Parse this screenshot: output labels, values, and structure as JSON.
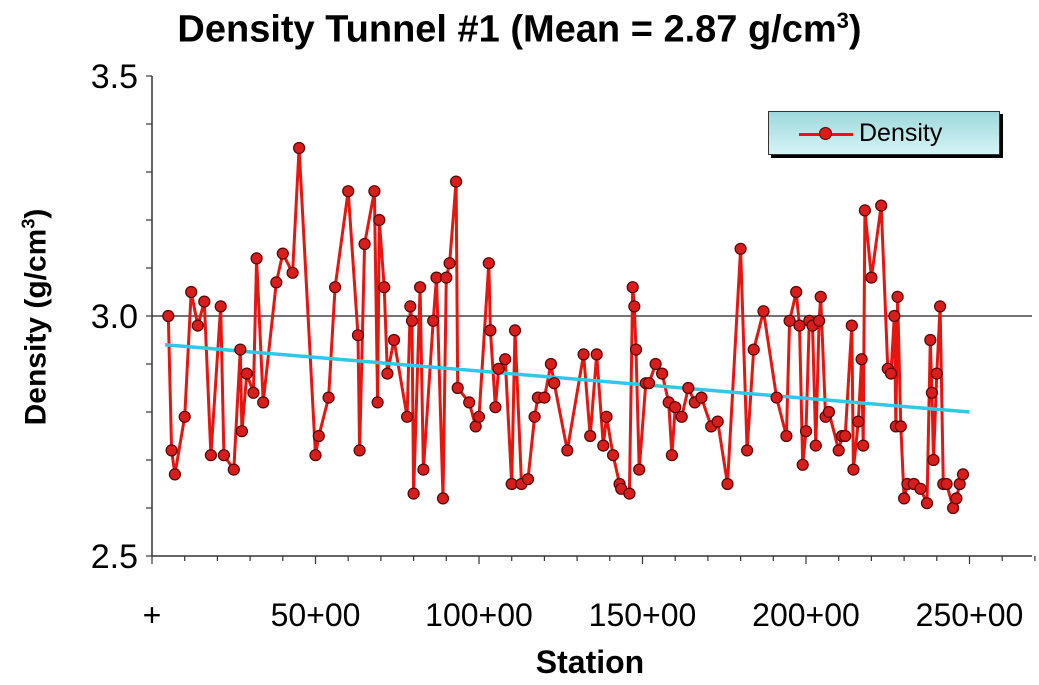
{
  "chart_data": {
    "type": "line",
    "title_main": "Density Tunnel #1  (Mean = 2.87 g/cm",
    "title_sup": "3",
    "title_end": ")",
    "ylabel_main": "Density (g/cm",
    "ylabel_sup": "3",
    "ylabel_end": ")",
    "xlabel": "Station",
    "ylim": [
      2.5,
      3.5
    ],
    "yticks": [
      "2.5",
      "3.0",
      "3.5"
    ],
    "xlim": [
      0,
      270
    ],
    "xticks": [
      {
        "v": 0,
        "label": "+"
      },
      {
        "v": 50,
        "label": "50+00"
      },
      {
        "v": 100,
        "label": "100+00"
      },
      {
        "v": 150,
        "label": "150+00"
      },
      {
        "v": 200,
        "label": "200+00"
      },
      {
        "v": 250,
        "label": "250+00"
      }
    ],
    "reference_line": 3.0,
    "grid": false,
    "legend": {
      "position": "top-right",
      "entries": [
        "Density"
      ]
    },
    "colors": {
      "series": "#e8150f",
      "marker": "#d81d1d",
      "marker_edge": "#5a0000",
      "trend": "#2ec8e8"
    },
    "series": [
      {
        "name": "Density",
        "points": [
          [
            5,
            3.0
          ],
          [
            6,
            2.72
          ],
          [
            7,
            2.67
          ],
          [
            10,
            2.79
          ],
          [
            12,
            3.05
          ],
          [
            14,
            2.98
          ],
          [
            16,
            3.03
          ],
          [
            18,
            2.71
          ],
          [
            21,
            3.02
          ],
          [
            22,
            2.71
          ],
          [
            25,
            2.68
          ],
          [
            27,
            2.93
          ],
          [
            27.5,
            2.76
          ],
          [
            29,
            2.88
          ],
          [
            31,
            2.84
          ],
          [
            32,
            3.12
          ],
          [
            34,
            2.82
          ],
          [
            38,
            3.07
          ],
          [
            40,
            3.13
          ],
          [
            43,
            3.09
          ],
          [
            45,
            3.35
          ],
          [
            50,
            2.71
          ],
          [
            51,
            2.75
          ],
          [
            54,
            2.83
          ],
          [
            56,
            3.06
          ],
          [
            60,
            3.26
          ],
          [
            63,
            2.96
          ],
          [
            63.5,
            2.72
          ],
          [
            65,
            3.15
          ],
          [
            68,
            3.26
          ],
          [
            69,
            2.82
          ],
          [
            69.5,
            3.2
          ],
          [
            71,
            3.06
          ],
          [
            72,
            2.88
          ],
          [
            74,
            2.95
          ],
          [
            78,
            2.79
          ],
          [
            79,
            3.02
          ],
          [
            79.5,
            2.99
          ],
          [
            80,
            2.63
          ],
          [
            82,
            3.06
          ],
          [
            83,
            2.68
          ],
          [
            86,
            2.99
          ],
          [
            87,
            3.08
          ],
          [
            89,
            2.62
          ],
          [
            90,
            3.08
          ],
          [
            91,
            3.11
          ],
          [
            93,
            3.28
          ],
          [
            93.5,
            2.85
          ],
          [
            97,
            2.82
          ],
          [
            99,
            2.77
          ],
          [
            100,
            2.79
          ],
          [
            103,
            3.11
          ],
          [
            103.5,
            2.97
          ],
          [
            105,
            2.81
          ],
          [
            106,
            2.89
          ],
          [
            108,
            2.91
          ],
          [
            110,
            2.65
          ],
          [
            111,
            2.97
          ],
          [
            113,
            2.65
          ],
          [
            115,
            2.66
          ],
          [
            117,
            2.79
          ],
          [
            118,
            2.83
          ],
          [
            120,
            2.83
          ],
          [
            122,
            2.9
          ],
          [
            123,
            2.86
          ],
          [
            127,
            2.72
          ],
          [
            132,
            2.92
          ],
          [
            134,
            2.75
          ],
          [
            136,
            2.92
          ],
          [
            138,
            2.73
          ],
          [
            139,
            2.79
          ],
          [
            141,
            2.71
          ],
          [
            143,
            2.65
          ],
          [
            143.5,
            2.64
          ],
          [
            146,
            2.63
          ],
          [
            147,
            3.06
          ],
          [
            147.5,
            3.02
          ],
          [
            148,
            2.93
          ],
          [
            149,
            2.68
          ],
          [
            151,
            2.86
          ],
          [
            152,
            2.86
          ],
          [
            154,
            2.9
          ],
          [
            156,
            2.88
          ],
          [
            158,
            2.82
          ],
          [
            159,
            2.71
          ],
          [
            160,
            2.81
          ],
          [
            162,
            2.79
          ],
          [
            164,
            2.85
          ],
          [
            166,
            2.82
          ],
          [
            168,
            2.83
          ],
          [
            171,
            2.77
          ],
          [
            173,
            2.78
          ],
          [
            176,
            2.65
          ],
          [
            180,
            3.14
          ],
          [
            182,
            2.72
          ],
          [
            184,
            2.93
          ],
          [
            187,
            3.01
          ],
          [
            191,
            2.83
          ],
          [
            194,
            2.75
          ],
          [
            195,
            2.99
          ],
          [
            197,
            3.05
          ],
          [
            198,
            2.98
          ],
          [
            199,
            2.69
          ],
          [
            200,
            2.76
          ],
          [
            201,
            2.99
          ],
          [
            202,
            2.98
          ],
          [
            203,
            2.73
          ],
          [
            204,
            2.99
          ],
          [
            204.5,
            3.04
          ],
          [
            206,
            2.79
          ],
          [
            207,
            2.8
          ],
          [
            210,
            2.72
          ],
          [
            211,
            2.75
          ],
          [
            212,
            2.75
          ],
          [
            214,
            2.98
          ],
          [
            214.5,
            2.68
          ],
          [
            216,
            2.78
          ],
          [
            217,
            2.91
          ],
          [
            217.5,
            2.73
          ],
          [
            218,
            3.22
          ],
          [
            220,
            3.08
          ],
          [
            223,
            3.23
          ],
          [
            225,
            2.89
          ],
          [
            226,
            2.88
          ],
          [
            227,
            3.0
          ],
          [
            227.5,
            2.77
          ],
          [
            228,
            3.04
          ],
          [
            229,
            2.77
          ],
          [
            230,
            2.62
          ],
          [
            231,
            2.65
          ],
          [
            233,
            2.65
          ],
          [
            235,
            2.64
          ],
          [
            237,
            2.61
          ],
          [
            238,
            2.95
          ],
          [
            238.5,
            2.84
          ],
          [
            239,
            2.7
          ],
          [
            240,
            2.88
          ],
          [
            241,
            3.02
          ],
          [
            242,
            2.65
          ],
          [
            243,
            2.65
          ],
          [
            245,
            2.6
          ],
          [
            246,
            2.62
          ],
          [
            247,
            2.65
          ],
          [
            248,
            2.67
          ]
        ]
      },
      {
        "name": "",
        "kind": "trend",
        "points": [
          [
            4,
            2.94
          ],
          [
            250,
            2.8
          ]
        ]
      }
    ]
  }
}
